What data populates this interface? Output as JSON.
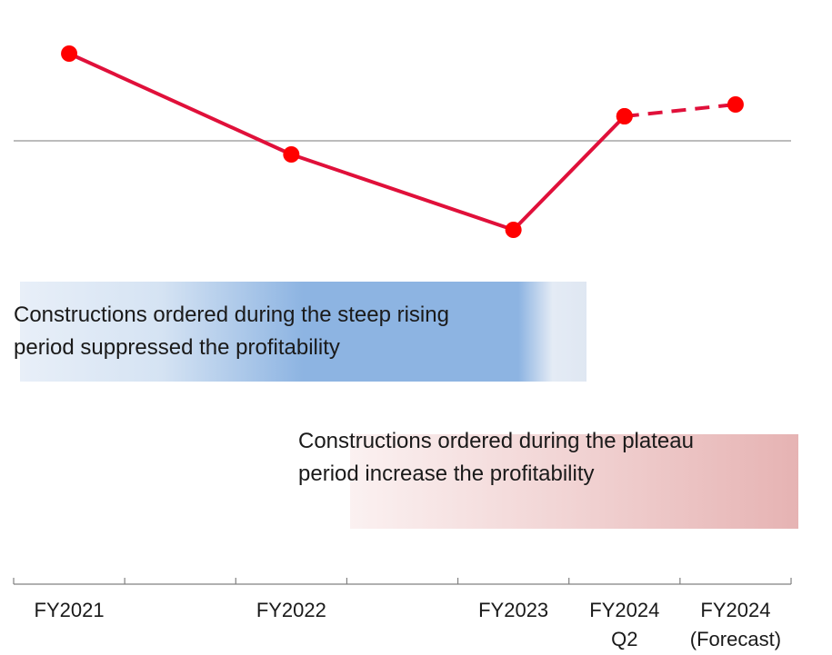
{
  "chart_data": {
    "type": "line",
    "categories": [
      "FY2021",
      "FY2022",
      "FY2023",
      "FY2024\nQ2",
      "FY2024\n(Forecast)"
    ],
    "series": [
      {
        "color": "#e0103a",
        "marker_color": "#ff0000",
        "values": [
          9.6,
          -1.5,
          -9.8,
          2.7,
          null
        ]
      },
      {
        "color": "#e0103a",
        "marker_color": "#ff0000",
        "dashed": true,
        "values": [
          null,
          null,
          null,
          2.7,
          4.0
        ]
      }
    ],
    "ylim": [
      -13.5,
      13.5
    ],
    "reference_line": 0,
    "annotations": [
      {
        "text": "Constructions ordered during the steep rising\nperiod suppressed the profitability",
        "color": "#8db4e2"
      },
      {
        "text": "Constructions ordered during the plateau\nperiod increase the profitability",
        "color": "#e6b3b3"
      }
    ]
  }
}
